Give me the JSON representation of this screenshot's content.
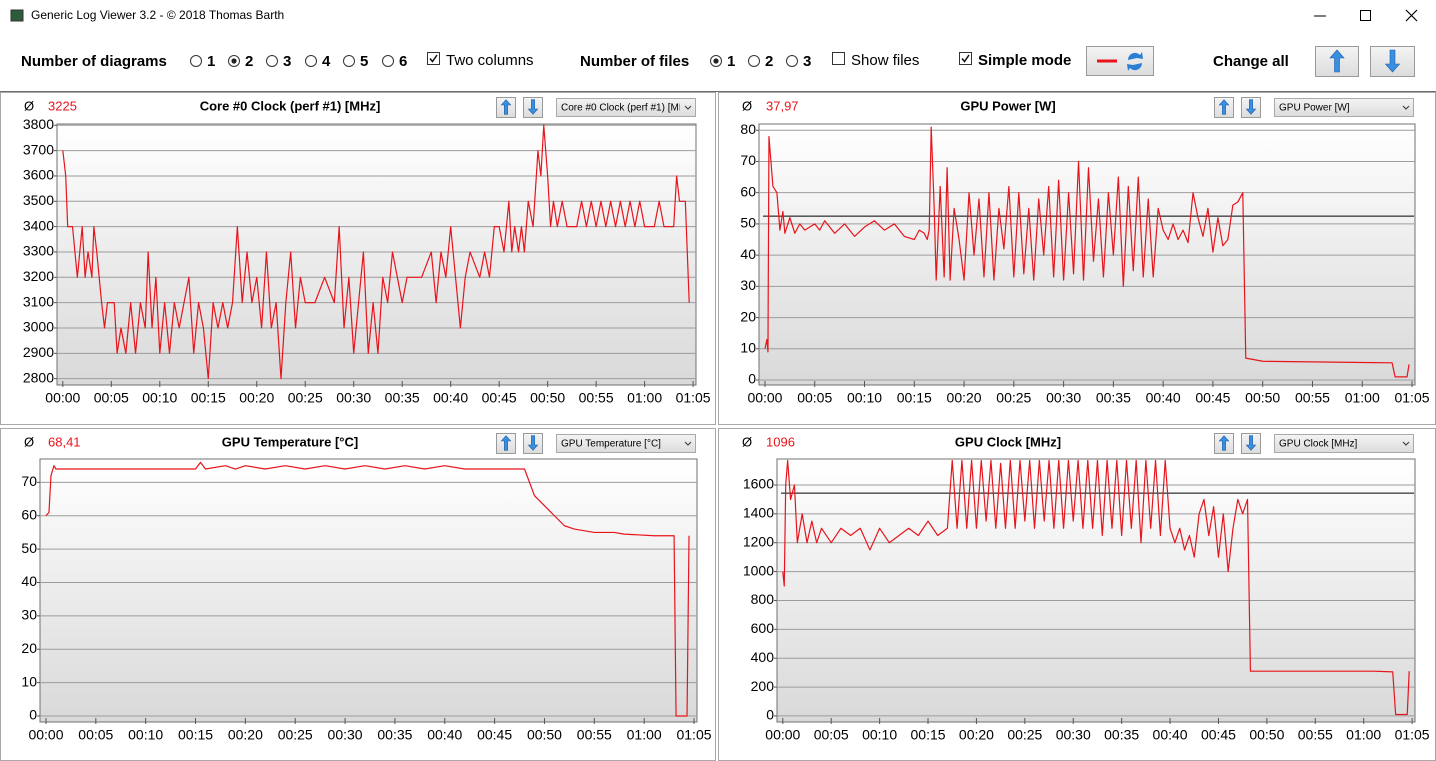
{
  "window": {
    "title": "Generic Log Viewer 3.2 - © 2018 Thomas Barth"
  },
  "toolbar": {
    "diagrams_label": "Number of diagrams",
    "diagram_options": [
      "1",
      "2",
      "3",
      "4",
      "5",
      "6"
    ],
    "diagrams_selected": 1,
    "two_columns": {
      "label": "Two columns",
      "checked": true
    },
    "files_label": "Number of files",
    "file_options": [
      "1",
      "2",
      "3"
    ],
    "files_selected": 0,
    "show_files": {
      "label": "Show files",
      "checked": false
    },
    "simple_mode": {
      "label": "Simple mode",
      "checked": true
    },
    "change_all_label": "Change all"
  },
  "chart_data": [
    {
      "type": "line",
      "title": "Core #0 Clock (perf #1) [MHz]",
      "average_symbol": "Ø",
      "average": "3225",
      "color": "#e8141c",
      "x": [
        0,
        0.3,
        0.5,
        1,
        1.5,
        2,
        2.3,
        2.6,
        3,
        3.2,
        3.5,
        4,
        4.3,
        4.6,
        5.3,
        5.6,
        6,
        6.5,
        7,
        7.5,
        8,
        8.5,
        8.8,
        9.2,
        9.6,
        10,
        10.5,
        11,
        11.5,
        12,
        12.5,
        13,
        13.5,
        14,
        14.5,
        15,
        15.5,
        16,
        16.5,
        17,
        17.5,
        18,
        18.5,
        19,
        19.5,
        20,
        20.5,
        21,
        21.5,
        22,
        22.5,
        23,
        23.5,
        24,
        24.5,
        25,
        26,
        27,
        28,
        28.5,
        29,
        29.5,
        30,
        30.5,
        31,
        31.5,
        32,
        32.5,
        33,
        33.5,
        34,
        35,
        35.5,
        37,
        38,
        38.5,
        39,
        39.5,
        40,
        40.5,
        41,
        41.5,
        42,
        43,
        43.5,
        44,
        44.5,
        45,
        45.5,
        46,
        46.3,
        46.6,
        47,
        47.3,
        47.6,
        48,
        48.5,
        49,
        49.3,
        49.6,
        50,
        50.3,
        50.6,
        51,
        51.5,
        52,
        53,
        53.5,
        54,
        54.5,
        55,
        55.5,
        56,
        56.5,
        57,
        57.5,
        58,
        58.5,
        59,
        59.5,
        60,
        61,
        61.5,
        62,
        63,
        63.3,
        63.6,
        64.2,
        64.6
      ],
      "values": [
        3700,
        3600,
        3400,
        3400,
        3200,
        3400,
        3200,
        3300,
        3200,
        3400,
        3300,
        3100,
        3000,
        3100,
        3100,
        2900,
        3000,
        2900,
        3100,
        2900,
        3100,
        3000,
        3300,
        3000,
        3200,
        2900,
        3100,
        2900,
        3100,
        3000,
        3100,
        3200,
        2900,
        3100,
        3000,
        2800,
        3100,
        3000,
        3100,
        3000,
        3100,
        3400,
        3100,
        3300,
        3100,
        3200,
        3000,
        3300,
        3000,
        3100,
        2800,
        3100,
        3300,
        3000,
        3200,
        3100,
        3100,
        3200,
        3100,
        3400,
        3000,
        3200,
        2900,
        3100,
        3300,
        2900,
        3100,
        2900,
        3200,
        3100,
        3300,
        3100,
        3200,
        3200,
        3300,
        3100,
        3300,
        3200,
        3400,
        3200,
        3000,
        3200,
        3300,
        3200,
        3300,
        3200,
        3400,
        3400,
        3300,
        3500,
        3300,
        3400,
        3300,
        3400,
        3300,
        3500,
        3400,
        3700,
        3600,
        3800,
        3600,
        3400,
        3500,
        3400,
        3500,
        3400,
        3400,
        3500,
        3400,
        3500,
        3400,
        3500,
        3400,
        3500,
        3400,
        3500,
        3400,
        3500,
        3400,
        3500,
        3400,
        3400,
        3500,
        3400,
        3400,
        3600,
        3500,
        3500,
        3100
      ],
      "xlim": [
        -0.6,
        65.3
      ],
      "ylim": [
        2775,
        3805
      ],
      "xticks": [
        {
          "value": 0,
          "label": "00:00"
        },
        {
          "value": 5,
          "label": "00:05"
        },
        {
          "value": 10,
          "label": "00:10"
        },
        {
          "value": 15,
          "label": "00:15"
        },
        {
          "value": 20,
          "label": "00:20"
        },
        {
          "value": 25,
          "label": "00:25"
        },
        {
          "value": 30,
          "label": "00:30"
        },
        {
          "value": 35,
          "label": "00:35"
        },
        {
          "value": 40,
          "label": "00:40"
        },
        {
          "value": 45,
          "label": "00:45"
        },
        {
          "value": 50,
          "label": "00:50"
        },
        {
          "value": 55,
          "label": "00:55"
        },
        {
          "value": 60,
          "label": "01:00"
        },
        {
          "value": 65,
          "label": "01:05"
        }
      ],
      "yticks": [
        2800,
        2900,
        3000,
        3100,
        3200,
        3300,
        3400,
        3500,
        3600,
        3700,
        3800
      ],
      "grid": true
    },
    {
      "type": "line",
      "title": "GPU Power [W]",
      "average_symbol": "Ø",
      "average": "37,97",
      "color": "#e8141c",
      "x": [
        0,
        0.2,
        0.3,
        0.4,
        0.8,
        1.2,
        1.5,
        1.8,
        2,
        2.5,
        3,
        3.5,
        4,
        5,
        5.5,
        6,
        7,
        8,
        9,
        10,
        11,
        12,
        13,
        14,
        15,
        15.5,
        16,
        16.3,
        16.5,
        16.7,
        17,
        17.2,
        17.6,
        18,
        18.3,
        18.6,
        19,
        19.5,
        20,
        20.5,
        21,
        21.5,
        22,
        22.5,
        23,
        23.5,
        24,
        24.5,
        25,
        25.5,
        26,
        26.5,
        27,
        27.5,
        28,
        28.5,
        29,
        29.5,
        30,
        30.5,
        31,
        31.5,
        32,
        32.5,
        33,
        33.5,
        34,
        34.5,
        35,
        35.5,
        36,
        36.5,
        37,
        37.5,
        38,
        38.5,
        39,
        39.5,
        40,
        40.5,
        41,
        41.5,
        42,
        42.5,
        43,
        43.5,
        44,
        44.5,
        45,
        45.5,
        46,
        46.5,
        47,
        47.5,
        48,
        48.3,
        50,
        55,
        60,
        63,
        63.3,
        64.5,
        64.7
      ],
      "values": [
        10,
        13,
        9,
        78,
        62,
        60,
        48,
        54,
        47,
        52,
        47,
        50,
        48,
        50,
        48,
        51,
        47,
        50,
        46,
        49,
        51,
        48,
        50,
        46,
        45,
        48,
        47,
        45,
        48,
        81,
        55,
        32,
        62,
        33,
        68,
        32,
        55,
        45,
        32,
        60,
        40,
        58,
        33,
        60,
        32,
        55,
        42,
        62,
        33,
        60,
        34,
        55,
        32,
        58,
        40,
        62,
        33,
        64,
        32,
        60,
        34,
        70,
        32,
        68,
        38,
        58,
        33,
        60,
        40,
        65,
        30,
        62,
        35,
        65,
        33,
        58,
        33,
        55,
        48,
        45,
        50,
        45,
        48,
        44,
        60,
        52,
        46,
        55,
        41,
        52,
        43,
        45,
        56,
        57,
        60,
        7,
        6,
        5.8,
        5.6,
        5.5,
        1,
        1,
        5
      ],
      "reference_line": 52.5,
      "xlim": [
        -0.6,
        65.3
      ],
      "ylim": [
        -1.6,
        82
      ],
      "xticks": [
        {
          "value": 0,
          "label": "00:00"
        },
        {
          "value": 5,
          "label": "00:05"
        },
        {
          "value": 10,
          "label": "00:10"
        },
        {
          "value": 15,
          "label": "00:15"
        },
        {
          "value": 20,
          "label": "00:20"
        },
        {
          "value": 25,
          "label": "00:25"
        },
        {
          "value": 30,
          "label": "00:30"
        },
        {
          "value": 35,
          "label": "00:35"
        },
        {
          "value": 40,
          "label": "00:40"
        },
        {
          "value": 45,
          "label": "00:45"
        },
        {
          "value": 50,
          "label": "00:50"
        },
        {
          "value": 55,
          "label": "00:55"
        },
        {
          "value": 60,
          "label": "01:00"
        },
        {
          "value": 65,
          "label": "01:05"
        }
      ],
      "yticks": [
        0,
        10,
        20,
        30,
        40,
        50,
        60,
        70,
        80
      ],
      "grid": true
    },
    {
      "type": "line",
      "title": "GPU Temperature [°C]",
      "average_symbol": "Ø",
      "average": "68,41",
      "color": "#e8141c",
      "x": [
        0,
        0.3,
        0.5,
        0.8,
        1,
        5,
        10,
        15,
        15.5,
        16,
        18,
        19,
        20,
        22,
        24,
        26,
        28,
        30,
        32,
        34,
        36,
        38,
        40,
        42,
        48,
        48.5,
        49,
        50,
        51,
        52,
        53,
        55,
        57,
        58,
        61,
        63,
        63.2,
        64.3,
        64.5
      ],
      "values": [
        60,
        61,
        72,
        75,
        74,
        74,
        74,
        74,
        76,
        74,
        75,
        74,
        75,
        74,
        75,
        74,
        75,
        74,
        75,
        74,
        75,
        74,
        75,
        74,
        74,
        70,
        66,
        63,
        60,
        57,
        56,
        55,
        55,
        54.5,
        54,
        54,
        0,
        0,
        54
      ],
      "xlim": [
        -0.6,
        65.3
      ],
      "ylim": [
        -1.8,
        77
      ],
      "xticks": [
        {
          "value": 0,
          "label": "00:00"
        },
        {
          "value": 5,
          "label": "00:05"
        },
        {
          "value": 10,
          "label": "00:10"
        },
        {
          "value": 15,
          "label": "00:15"
        },
        {
          "value": 20,
          "label": "00:20"
        },
        {
          "value": 25,
          "label": "00:25"
        },
        {
          "value": 30,
          "label": "00:30"
        },
        {
          "value": 35,
          "label": "00:35"
        },
        {
          "value": 40,
          "label": "00:40"
        },
        {
          "value": 45,
          "label": "00:45"
        },
        {
          "value": 50,
          "label": "00:50"
        },
        {
          "value": 55,
          "label": "00:55"
        },
        {
          "value": 60,
          "label": "01:00"
        },
        {
          "value": 65,
          "label": "01:05"
        }
      ],
      "yticks": [
        0,
        10,
        20,
        30,
        40,
        50,
        60,
        70
      ],
      "grid": true
    },
    {
      "type": "line",
      "title": "GPU Clock [MHz]",
      "average_symbol": "Ø",
      "average": "1096",
      "color": "#e8141c",
      "x": [
        0,
        0.15,
        0.3,
        0.5,
        0.8,
        1.2,
        1.5,
        2,
        2.5,
        3,
        3.5,
        4,
        5,
        6,
        7,
        8,
        9,
        10,
        11,
        12,
        13,
        14,
        15,
        16,
        17,
        17.5,
        18,
        18.5,
        19,
        19.5,
        20,
        20.5,
        21,
        21.5,
        22,
        22.5,
        23,
        23.5,
        24,
        24.5,
        25,
        25.5,
        26,
        26.5,
        27,
        27.5,
        28,
        28.5,
        29,
        29.5,
        30,
        30.5,
        31,
        31.5,
        32,
        32.5,
        33,
        33.5,
        34,
        34.5,
        35,
        35.5,
        36,
        36.5,
        37,
        37.5,
        38,
        38.5,
        39,
        39.5,
        40,
        40.5,
        41,
        41.5,
        42,
        42.5,
        43,
        43.5,
        44,
        44.5,
        45,
        45.5,
        46,
        46.5,
        47,
        47.5,
        48,
        48.3,
        55,
        61,
        63,
        63.3,
        64.5,
        64.7
      ],
      "values": [
        1000,
        900,
        1600,
        1770,
        1500,
        1600,
        1200,
        1400,
        1200,
        1350,
        1200,
        1300,
        1200,
        1300,
        1250,
        1300,
        1150,
        1300,
        1200,
        1250,
        1300,
        1250,
        1350,
        1250,
        1300,
        1770,
        1300,
        1770,
        1300,
        1770,
        1300,
        1770,
        1350,
        1770,
        1300,
        1750,
        1300,
        1770,
        1300,
        1770,
        1350,
        1770,
        1300,
        1770,
        1350,
        1770,
        1300,
        1770,
        1300,
        1770,
        1350,
        1770,
        1300,
        1770,
        1300,
        1770,
        1250,
        1770,
        1300,
        1770,
        1250,
        1770,
        1300,
        1770,
        1200,
        1770,
        1300,
        1770,
        1250,
        1770,
        1300,
        1200,
        1300,
        1150,
        1250,
        1100,
        1400,
        1500,
        1250,
        1450,
        1100,
        1400,
        1000,
        1300,
        1500,
        1400,
        1500,
        310,
        310,
        310,
        305,
        10,
        10,
        310
      ],
      "reference_line": 1544,
      "xlim": [
        -0.6,
        65.3
      ],
      "ylim": [
        -42,
        1780
      ],
      "xticks": [
        {
          "value": 0,
          "label": "00:00"
        },
        {
          "value": 5,
          "label": "00:05"
        },
        {
          "value": 10,
          "label": "00:10"
        },
        {
          "value": 15,
          "label": "00:15"
        },
        {
          "value": 20,
          "label": "00:20"
        },
        {
          "value": 25,
          "label": "00:25"
        },
        {
          "value": 30,
          "label": "00:30"
        },
        {
          "value": 35,
          "label": "00:35"
        },
        {
          "value": 40,
          "label": "00:40"
        },
        {
          "value": 45,
          "label": "00:45"
        },
        {
          "value": 50,
          "label": "00:50"
        },
        {
          "value": 55,
          "label": "00:55"
        },
        {
          "value": 60,
          "label": "01:00"
        },
        {
          "value": 65,
          "label": "01:05"
        }
      ],
      "yticks": [
        0,
        200,
        400,
        600,
        800,
        1000,
        1200,
        1400,
        1600
      ],
      "grid": true
    }
  ]
}
